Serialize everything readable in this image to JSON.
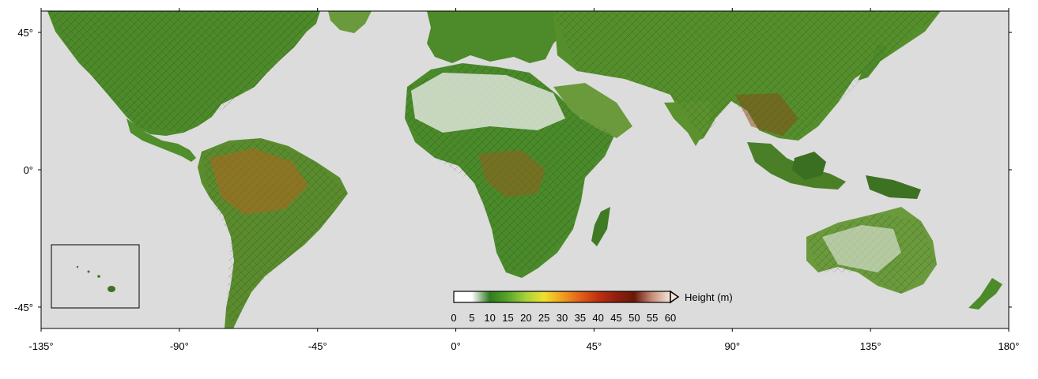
{
  "map": {
    "projection": "equirectangular",
    "lon_range": [
      -135,
      180
    ],
    "lat_range": [
      -52,
      52
    ],
    "ocean_color": "#dcdcdc",
    "frame_color": "#000000",
    "lon_ticks": [
      "-135°",
      "-90°",
      "-45°",
      "0°",
      "45°",
      "90°",
      "135°",
      "180°"
    ],
    "lat_ticks": [
      "45°",
      "0°",
      "-45°"
    ],
    "inset": "Hawaii"
  },
  "colorbar": {
    "label": "Height (m)",
    "ticks": [
      "0",
      "5",
      "10",
      "15",
      "20",
      "25",
      "30",
      "35",
      "40",
      "45",
      "50",
      "55",
      "60"
    ],
    "range": [
      0,
      60
    ],
    "colors": [
      "#ffffff",
      "#ffffff",
      "#2e7a1f",
      "#5aa62a",
      "#a6d23a",
      "#f0e030",
      "#f0a020",
      "#e06018",
      "#c03010",
      "#902010",
      "#6a1808",
      "#c89078",
      "#f6e6dc"
    ]
  }
}
